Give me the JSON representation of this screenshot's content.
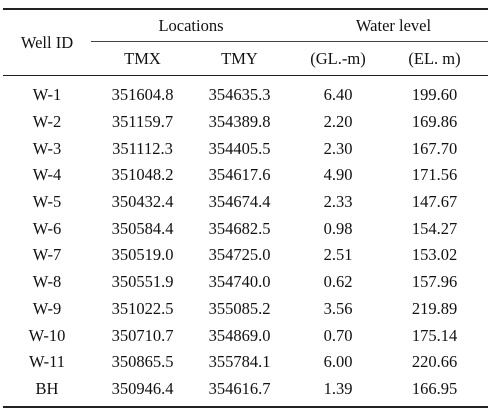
{
  "table": {
    "headers": {
      "well_id": "Well ID",
      "locations": "Locations",
      "water_level": "Water level",
      "tmx": "TMX",
      "tmy": "TMY",
      "gl": "(GL.-m)",
      "el": "(EL. m)"
    },
    "rows": [
      {
        "id": "W-1",
        "tmx": "351604.8",
        "tmy": "354635.3",
        "gl": "6.40",
        "el": "199.60"
      },
      {
        "id": "W-2",
        "tmx": "351159.7",
        "tmy": "354389.8",
        "gl": "2.20",
        "el": "169.86"
      },
      {
        "id": "W-3",
        "tmx": "351112.3",
        "tmy": "354405.5",
        "gl": "2.30",
        "el": "167.70"
      },
      {
        "id": "W-4",
        "tmx": "351048.2",
        "tmy": "354617.6",
        "gl": "4.90",
        "el": "171.56"
      },
      {
        "id": "W-5",
        "tmx": "350432.4",
        "tmy": "354674.4",
        "gl": "2.33",
        "el": "147.67"
      },
      {
        "id": "W-6",
        "tmx": "350584.4",
        "tmy": "354682.5",
        "gl": "0.98",
        "el": "154.27"
      },
      {
        "id": "W-7",
        "tmx": "350519.0",
        "tmy": "354725.0",
        "gl": "2.51",
        "el": "153.02"
      },
      {
        "id": "W-8",
        "tmx": "350551.9",
        "tmy": "354740.0",
        "gl": "0.62",
        "el": "157.96"
      },
      {
        "id": "W-9",
        "tmx": "351022.5",
        "tmy": "355085.2",
        "gl": "3.56",
        "el": "219.89"
      },
      {
        "id": "W-10",
        "tmx": "350710.7",
        "tmy": "354869.0",
        "gl": "0.70",
        "el": "175.14"
      },
      {
        "id": "W-11",
        "tmx": "350865.5",
        "tmy": "355784.1",
        "gl": "6.00",
        "el": "220.66"
      },
      {
        "id": "BH",
        "tmx": "350946.4",
        "tmy": "354616.7",
        "gl": "1.39",
        "el": "166.95"
      }
    ]
  }
}
